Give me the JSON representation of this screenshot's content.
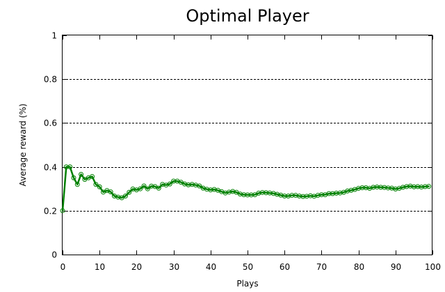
{
  "chart_data": {
    "type": "line",
    "title": "Optimal Player",
    "xlabel": "Plays",
    "ylabel": "Average reward (%)",
    "xlim": [
      0,
      100
    ],
    "ylim": [
      0,
      1
    ],
    "x_ticks": [
      0,
      10,
      20,
      30,
      40,
      50,
      60,
      70,
      80,
      90,
      100
    ],
    "y_ticks": [
      0,
      0.2,
      0.4,
      0.6,
      0.8,
      1
    ],
    "x_tick_labels": [
      "0",
      "10",
      "20",
      "30",
      "40",
      "50",
      "60",
      "70",
      "80",
      "90",
      "100"
    ],
    "y_tick_labels": [
      "0",
      "0.2",
      "0.4",
      "0.6",
      "0.8",
      "1"
    ],
    "grid": "horizontal dashed",
    "series": [
      {
        "color": "#008000",
        "marker": "open-circle",
        "x": [
          0,
          1,
          2,
          3,
          4,
          5,
          6,
          7,
          8,
          9,
          10,
          11,
          12,
          13,
          14,
          15,
          16,
          17,
          18,
          19,
          20,
          21,
          22,
          23,
          24,
          25,
          26,
          27,
          28,
          29,
          30,
          31,
          32,
          33,
          34,
          35,
          36,
          37,
          38,
          39,
          40,
          41,
          42,
          43,
          44,
          45,
          46,
          47,
          48,
          49,
          50,
          51,
          52,
          53,
          54,
          55,
          56,
          57,
          58,
          59,
          60,
          61,
          62,
          63,
          64,
          65,
          66,
          67,
          68,
          69,
          70,
          71,
          72,
          73,
          74,
          75,
          76,
          77,
          78,
          79,
          80,
          81,
          82,
          83,
          84,
          85,
          86,
          87,
          88,
          89,
          90,
          91,
          92,
          93,
          94,
          95,
          96,
          97,
          98,
          99
        ],
        "values": [
          0.2,
          0.4,
          0.4,
          0.35,
          0.32,
          0.366,
          0.343,
          0.35,
          0.356,
          0.32,
          0.309,
          0.285,
          0.292,
          0.286,
          0.267,
          0.262,
          0.259,
          0.267,
          0.284,
          0.299,
          0.295,
          0.3,
          0.313,
          0.3,
          0.312,
          0.31,
          0.303,
          0.32,
          0.317,
          0.322,
          0.335,
          0.335,
          0.33,
          0.322,
          0.318,
          0.32,
          0.317,
          0.313,
          0.303,
          0.298,
          0.295,
          0.297,
          0.293,
          0.287,
          0.281,
          0.285,
          0.288,
          0.284,
          0.276,
          0.273,
          0.272,
          0.272,
          0.273,
          0.28,
          0.283,
          0.282,
          0.281,
          0.279,
          0.275,
          0.271,
          0.267,
          0.267,
          0.27,
          0.27,
          0.267,
          0.265,
          0.266,
          0.268,
          0.266,
          0.27,
          0.273,
          0.273,
          0.278,
          0.278,
          0.28,
          0.281,
          0.284,
          0.29,
          0.293,
          0.297,
          0.302,
          0.305,
          0.305,
          0.302,
          0.307,
          0.308,
          0.307,
          0.306,
          0.304,
          0.303,
          0.299,
          0.302,
          0.307,
          0.31,
          0.312,
          0.309,
          0.31,
          0.308,
          0.31,
          0.311
        ]
      }
    ]
  }
}
